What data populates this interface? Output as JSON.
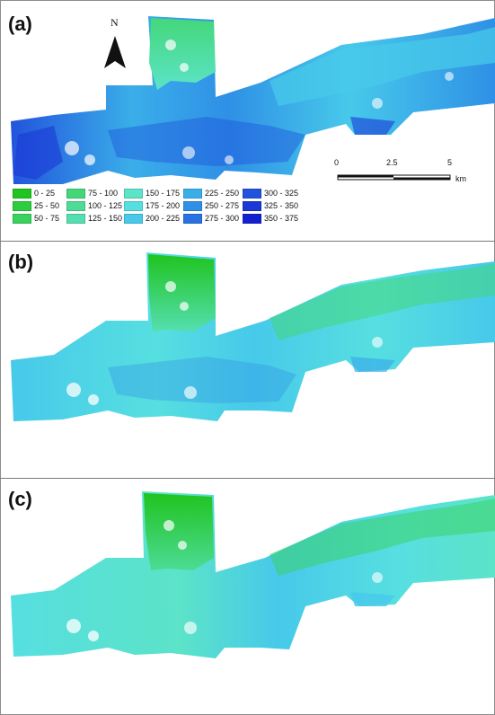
{
  "panels": [
    {
      "label": "(a)",
      "id": "a"
    },
    {
      "label": "(b)",
      "id": "b"
    },
    {
      "label": "(c)",
      "id": "c"
    }
  ],
  "north_arrow": {
    "letter": "N"
  },
  "scale_bar": {
    "ticks": [
      "0",
      "2.5",
      "5"
    ],
    "unit": "km"
  },
  "legend": [
    {
      "label": "0 - 25",
      "color": "#1fc41f"
    },
    {
      "label": "25 - 50",
      "color": "#2ccd3e"
    },
    {
      "label": "50 - 75",
      "color": "#38d25c"
    },
    {
      "label": "75 - 100",
      "color": "#44d77a"
    },
    {
      "label": "100 - 125",
      "color": "#4ddb96"
    },
    {
      "label": "125 - 150",
      "color": "#55dfb0"
    },
    {
      "label": "150 - 175",
      "color": "#5ce3c8"
    },
    {
      "label": "175 - 200",
      "color": "#56dfe0"
    },
    {
      "label": "200 - 225",
      "color": "#47c9ea"
    },
    {
      "label": "225 - 250",
      "color": "#3aaee9"
    },
    {
      "label": "250 - 275",
      "color": "#2f90e6"
    },
    {
      "label": "275 - 300",
      "color": "#2872e2"
    },
    {
      "label": "300 - 325",
      "color": "#2054dc"
    },
    {
      "label": "325 - 350",
      "color": "#1a38d6"
    },
    {
      "label": "350 - 375",
      "color": "#1420cf"
    }
  ]
}
